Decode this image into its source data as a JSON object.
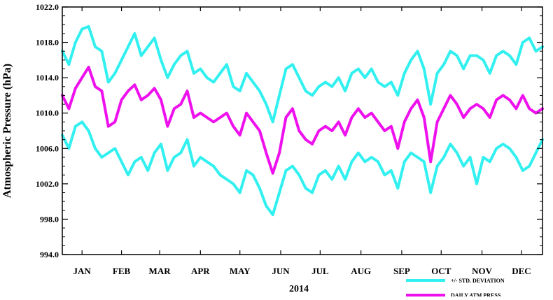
{
  "chart_data": {
    "type": "line",
    "title": "",
    "xlabel": "2014",
    "ylabel": "Atmospheric Pressure (hPa)",
    "xlim": [
      0,
      365
    ],
    "ylim": [
      994.0,
      1022.0
    ],
    "y_ticks": [
      994.0,
      998.0,
      1002.0,
      1006.0,
      1010.0,
      1014.0,
      1018.0,
      1022.0
    ],
    "y_tick_labels": [
      "994.0",
      "998.0",
      "1002.0",
      "1006.0",
      "1010.0",
      "1014.0",
      "1018.0",
      "1022.0"
    ],
    "x_tick_labels": [
      "JAN",
      "FEB",
      "MAR",
      "APR",
      "MAY",
      "JUN",
      "JUL",
      "AUG",
      "SEP",
      "OCT",
      "NOV",
      "DEC"
    ],
    "x_tick_positions": [
      15,
      45,
      74,
      105,
      135,
      166,
      196,
      227,
      258,
      288,
      319,
      349
    ],
    "grid": false,
    "legend_position": "bottom-right",
    "colors": {
      "std": "#33f0f0",
      "mean": "#ee11ee"
    },
    "series": [
      {
        "name": "DAILY ATM PRESS",
        "color": "#ee11ee",
        "x": [
          0,
          5,
          10,
          15,
          20,
          25,
          30,
          35,
          40,
          45,
          50,
          55,
          60,
          65,
          70,
          75,
          80,
          85,
          90,
          95,
          100,
          105,
          110,
          115,
          120,
          125,
          130,
          135,
          140,
          145,
          150,
          155,
          160,
          165,
          170,
          175,
          180,
          185,
          190,
          195,
          200,
          205,
          210,
          215,
          220,
          225,
          230,
          235,
          240,
          245,
          250,
          255,
          260,
          265,
          270,
          275,
          280,
          285,
          290,
          295,
          300,
          305,
          310,
          315,
          320,
          325,
          330,
          335,
          340,
          345,
          350,
          355,
          360,
          365
        ],
        "y": [
          1012.0,
          1010.5,
          1012.8,
          1014.0,
          1015.2,
          1013.0,
          1012.5,
          1008.5,
          1009.0,
          1011.5,
          1012.5,
          1013.2,
          1011.5,
          1012.0,
          1012.8,
          1011.5,
          1008.5,
          1010.5,
          1011.0,
          1012.5,
          1009.5,
          1010.0,
          1009.5,
          1009.0,
          1009.5,
          1010.0,
          1008.5,
          1007.5,
          1010.0,
          1009.0,
          1008.0,
          1005.5,
          1003.2,
          1005.5,
          1009.5,
          1010.5,
          1008.0,
          1007.0,
          1006.5,
          1008.0,
          1008.5,
          1008.0,
          1009.0,
          1007.5,
          1009.5,
          1010.5,
          1009.5,
          1010.0,
          1009.0,
          1008.0,
          1008.5,
          1006.0,
          1009.0,
          1010.5,
          1011.5,
          1009.5,
          1004.5,
          1009.0,
          1010.5,
          1012.0,
          1011.0,
          1009.5,
          1010.5,
          1011.0,
          1010.5,
          1009.5,
          1011.5,
          1012.0,
          1011.5,
          1010.5,
          1012.0,
          1010.5,
          1010.0,
          1010.5
        ]
      },
      {
        "name": "+/- STD. DEVIATION",
        "color": "#33f0f0",
        "x": [
          0,
          5,
          10,
          15,
          20,
          25,
          30,
          35,
          40,
          45,
          50,
          55,
          60,
          65,
          70,
          75,
          80,
          85,
          90,
          95,
          100,
          105,
          110,
          115,
          120,
          125,
          130,
          135,
          140,
          145,
          150,
          155,
          160,
          165,
          170,
          175,
          180,
          185,
          190,
          195,
          200,
          205,
          210,
          215,
          220,
          225,
          230,
          235,
          240,
          245,
          250,
          255,
          260,
          265,
          270,
          275,
          280,
          285,
          290,
          295,
          300,
          305,
          310,
          315,
          320,
          325,
          330,
          335,
          340,
          345,
          350,
          355,
          360,
          365
        ],
        "y": [
          1017.0,
          1015.5,
          1018.0,
          1019.5,
          1019.8,
          1017.5,
          1017.0,
          1013.5,
          1014.5,
          1016.0,
          1017.5,
          1019.0,
          1016.5,
          1017.5,
          1018.5,
          1016.0,
          1014.0,
          1015.5,
          1016.5,
          1017.0,
          1014.5,
          1015.0,
          1014.0,
          1013.5,
          1014.5,
          1015.5,
          1013.0,
          1012.5,
          1014.5,
          1013.5,
          1012.5,
          1011.0,
          1009.0,
          1012.0,
          1015.0,
          1015.5,
          1014.0,
          1012.5,
          1012.0,
          1013.0,
          1013.5,
          1013.0,
          1014.0,
          1012.5,
          1014.5,
          1015.0,
          1014.0,
          1015.0,
          1013.5,
          1013.0,
          1013.5,
          1012.0,
          1014.5,
          1016.0,
          1017.0,
          1015.0,
          1011.0,
          1014.5,
          1015.5,
          1017.0,
          1016.5,
          1015.0,
          1016.5,
          1016.5,
          1016.0,
          1014.5,
          1016.5,
          1017.0,
          1016.5,
          1015.5,
          1018.0,
          1018.5,
          1017.0,
          1017.5
        ]
      },
      {
        "name": "+/- STD. DEVIATION",
        "color": "#33f0f0",
        "x": [
          0,
          5,
          10,
          15,
          20,
          25,
          30,
          35,
          40,
          45,
          50,
          55,
          60,
          65,
          70,
          75,
          80,
          85,
          90,
          95,
          100,
          105,
          110,
          115,
          120,
          125,
          130,
          135,
          140,
          145,
          150,
          155,
          160,
          165,
          170,
          175,
          180,
          185,
          190,
          195,
          200,
          205,
          210,
          215,
          220,
          225,
          230,
          235,
          240,
          245,
          250,
          255,
          260,
          265,
          270,
          275,
          280,
          285,
          290,
          295,
          300,
          305,
          310,
          315,
          320,
          325,
          330,
          335,
          340,
          345,
          350,
          355,
          360,
          365
        ],
        "y": [
          1007.5,
          1006.0,
          1008.5,
          1009.0,
          1008.0,
          1006.0,
          1005.0,
          1005.5,
          1006.0,
          1004.5,
          1003.0,
          1004.5,
          1005.0,
          1003.5,
          1005.5,
          1006.5,
          1003.5,
          1005.0,
          1005.5,
          1007.0,
          1004.0,
          1005.0,
          1004.5,
          1004.0,
          1003.0,
          1002.5,
          1002.0,
          1001.0,
          1003.5,
          1003.0,
          1001.5,
          999.5,
          998.5,
          1001.0,
          1003.5,
          1004.0,
          1003.0,
          1001.5,
          1001.0,
          1003.0,
          1003.5,
          1002.5,
          1004.0,
          1002.5,
          1004.5,
          1005.5,
          1004.5,
          1005.0,
          1004.5,
          1003.0,
          1003.5,
          1001.5,
          1004.5,
          1005.5,
          1005.0,
          1004.5,
          1001.0,
          1004.0,
          1005.0,
          1006.5,
          1005.5,
          1004.0,
          1005.0,
          1002.0,
          1005.0,
          1004.5,
          1006.0,
          1006.5,
          1006.0,
          1005.0,
          1003.5,
          1004.0,
          1005.5,
          1007.0
        ]
      }
    ]
  }
}
